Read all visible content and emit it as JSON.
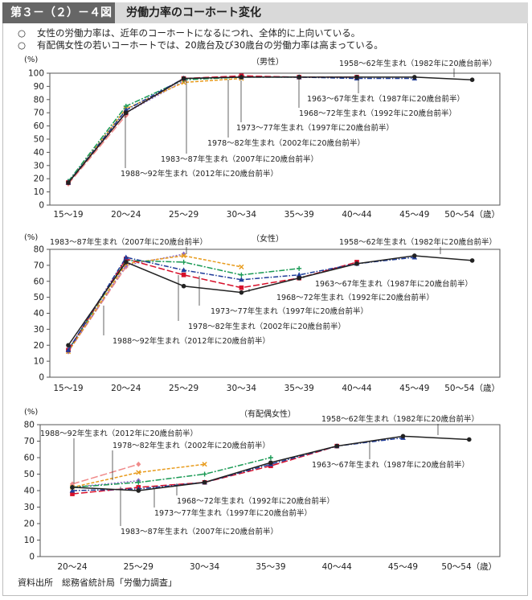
{
  "header": {
    "figure_label": "第３－（２）－４図",
    "title": "労働力率のコーホート変化"
  },
  "bullets": [
    "女性の労働力率は、近年のコーホートになるにつれ、全体的に上向いている。",
    "有配偶女性の若いコーホートでは、20歳台及び30歳台の労働力率は高まっている。"
  ],
  "bullet_marker": "○",
  "source": "資料出所　総務省統計局「労働力調査」",
  "colors": {
    "c1958": "#222222",
    "c1963": "#1f3c99",
    "c1968": "#d7102a",
    "c1973": "#1a9a55",
    "c1978": "#e89b1c",
    "c1983": "#8a6cc8",
    "c1988": "#f08a8a"
  },
  "chart_data": [
    {
      "type": "line",
      "title": "（男性）",
      "ylabel": "(%)",
      "ylim": [
        0,
        100
      ],
      "yticks": [
        0,
        10,
        20,
        30,
        40,
        50,
        60,
        70,
        80,
        90,
        100
      ],
      "categories": [
        "15～19",
        "20～24",
        "25～29",
        "30～34",
        "35～39",
        "40～44",
        "45～49",
        "50～54"
      ],
      "last_category_suffix": "（歳）",
      "series": [
        {
          "name": "1958～62年生まれ（1982年に20歳台前半）",
          "color_key": "c1958",
          "values": [
            17,
            70,
            96,
            97,
            97,
            97,
            97,
            95
          ]
        },
        {
          "name": "1963～67年生まれ（1987年に20歳台前半）",
          "color_key": "c1963",
          "values": [
            17,
            72,
            96,
            97,
            97,
            96,
            96,
            null
          ]
        },
        {
          "name": "1968～72年生まれ（1992年に20歳台前半）",
          "color_key": "c1968",
          "values": [
            17,
            70,
            96,
            98,
            97,
            97,
            null,
            null
          ]
        },
        {
          "name": "1973～77年生まれ（1997年に20歳台前半）",
          "color_key": "c1973",
          "values": [
            18,
            75,
            95,
            97,
            97,
            null,
            null,
            null
          ]
        },
        {
          "name": "1978～82年生まれ（2002年に20歳台前半）",
          "color_key": "c1978",
          "values": [
            17,
            73,
            93,
            96,
            null,
            null,
            null,
            null
          ]
        },
        {
          "name": "1983～87年生まれ（2007年に20歳台前半）",
          "color_key": "c1983",
          "values": [
            18,
            70,
            94,
            null,
            null,
            null,
            null,
            null
          ]
        },
        {
          "name": "1988～92年生まれ（2012年に20歳台前半）",
          "color_key": "c1988",
          "values": [
            16,
            68,
            null,
            null,
            null,
            null,
            null,
            null
          ]
        }
      ],
      "annotations": [
        "1958～62年生まれ（1982年に20歳台前半）",
        "1963～67年生まれ（1987年に20歳台前半）",
        "1968～72年生まれ（1992年に20歳台前半）",
        "1973～77年生まれ（1997年に20歳台前半）",
        "1978～82年生まれ（2002年に20歳台前半）",
        "1983～87年生まれ（2007年に20歳台前半）",
        "1988～92年生まれ（2012年に20歳台前半）"
      ]
    },
    {
      "type": "line",
      "title": "（女性）",
      "ylabel": "(%)",
      "ylim": [
        0,
        80
      ],
      "yticks": [
        0,
        10,
        20,
        30,
        40,
        50,
        60,
        70,
        80
      ],
      "categories": [
        "15～19",
        "20～24",
        "25～29",
        "30～34",
        "35～39",
        "40～44",
        "45～49",
        "50～54"
      ],
      "last_category_suffix": "（歳）",
      "series": [
        {
          "name": "1958～62年生まれ（1982年に20歳台前半）",
          "color_key": "c1958",
          "values": [
            20,
            72,
            57,
            53,
            62,
            71,
            76,
            73
          ]
        },
        {
          "name": "1963～67年生まれ（1987年に20歳台前半）",
          "color_key": "c1963",
          "values": [
            17,
            75,
            67,
            61,
            64,
            71,
            75,
            null
          ]
        },
        {
          "name": "1968～72年生まれ（1992年に20歳台前半）",
          "color_key": "c1968",
          "values": [
            17,
            74,
            64,
            56,
            62,
            72,
            null,
            null
          ]
        },
        {
          "name": "1973～77年生まれ（1997年に20歳台前半）",
          "color_key": "c1973",
          "values": [
            17,
            73,
            72,
            64,
            68,
            null,
            null,
            null
          ]
        },
        {
          "name": "1978～82年生まれ（2002年に20歳台前半）",
          "color_key": "c1978",
          "values": [
            16,
            71,
            76,
            69,
            null,
            null,
            null,
            null
          ]
        },
        {
          "name": "1983～87年生まれ（2007年に20歳台前半）",
          "color_key": "c1983",
          "values": [
            16,
            70,
            77,
            null,
            null,
            null,
            null,
            null
          ]
        },
        {
          "name": "1988～92年生まれ（2012年に20歳台前半）",
          "color_key": "c1988",
          "values": [
            16,
            69,
            null,
            null,
            null,
            null,
            null,
            null
          ]
        }
      ],
      "annotations": [
        "1983～87年生まれ（2007年に20歳台前半）",
        "1958～62年生まれ（1982年に20歳台前半）",
        "1963～67年生まれ（1987年に20歳台前半）",
        "1968～72年生まれ（1992年に20歳台前半）",
        "1973～77年生まれ（1997年に20歳台前半）",
        "1978～82年生まれ（2002年に20歳台前半）",
        "1988～92年生まれ（2012年に20歳台前半）"
      ]
    },
    {
      "type": "line",
      "title": "（有配偶女性）",
      "ylabel": "(%)",
      "ylim": [
        0,
        80
      ],
      "yticks": [
        0,
        10,
        20,
        30,
        40,
        50,
        60,
        70,
        80
      ],
      "categories": [
        "20～24",
        "25～29",
        "30～34",
        "35～39",
        "40～44",
        "45～49",
        "50～54"
      ],
      "last_category_suffix": "（歳）",
      "series": [
        {
          "name": "1958～62年生まれ（1982年に20歳台前半）",
          "color_key": "c1958",
          "values": [
            42,
            40,
            45,
            57,
            67,
            73,
            71
          ]
        },
        {
          "name": "1963～67年生まれ（1987年に20歳台前半）",
          "color_key": "c1963",
          "values": [
            40,
            41,
            45,
            56,
            67,
            72,
            null
          ]
        },
        {
          "name": "1968～72年生まれ（1992年に20歳台前半）",
          "color_key": "c1968",
          "values": [
            38,
            42,
            45,
            55,
            67,
            null,
            null
          ]
        },
        {
          "name": "1973～77年生まれ（1997年に20歳台前半）",
          "color_key": "c1973",
          "values": [
            42,
            45,
            50,
            60,
            null,
            null,
            null
          ]
        },
        {
          "name": "1978～82年生まれ（2002年に20歳台前半）",
          "color_key": "c1978",
          "values": [
            42,
            51,
            56,
            null,
            null,
            null,
            null
          ]
        },
        {
          "name": "1983～87年生まれ（2007年に20歳台前半）",
          "color_key": "c1983",
          "values": [
            42,
            46,
            null,
            null,
            null,
            null,
            null
          ]
        },
        {
          "name": "1988～92年生まれ（2012年に20歳台前半）",
          "color_key": "c1988",
          "values": [
            44,
            56,
            null,
            null,
            null,
            null,
            null
          ]
        }
      ],
      "annotations": [
        "1958～62年生まれ（1982年に20歳台前半）",
        "1988～92年生まれ（2012年に20歳台前半）",
        "1978～82年生まれ（2002年に20歳台前半）",
        "1963～67年生まれ（1987年に20歳台前半）",
        "1968～72年生まれ（1992年に20歳台前半）",
        "1973～77年生まれ（1997年に20歳台前半）",
        "1983～87年生まれ（2007年に20歳台前半）"
      ]
    }
  ]
}
